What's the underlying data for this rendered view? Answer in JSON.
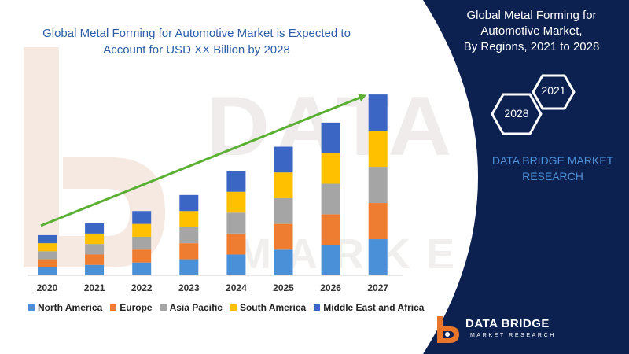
{
  "title": {
    "line1": "Global Metal Forming for Automotive Market is Expected to",
    "line2": "Account for USD XX Billion by 2028"
  },
  "panel": {
    "title_line1": "Global Metal Forming for",
    "title_line2": "Automotive Market,",
    "title_line3": "By Regions, 2021 to 2028",
    "hex_top": "2021",
    "hex_bottom": "2028",
    "brand_line1": "DATA BRIDGE MARKET",
    "brand_line2": "RESEARCH",
    "background_color": "#0d2150"
  },
  "watermark": {
    "big": "DATA BRIDGE",
    "small": "MARKET RESEARCH"
  },
  "logo": {
    "name": "DATA BRIDGE",
    "sub": "MARKET RESEARCH",
    "accent_color": "#e8752a"
  },
  "chart_data": {
    "type": "bar",
    "stacked": true,
    "title": "Global Metal Forming for Automotive Market is Expected to Account for USD XX Billion by 2028",
    "categories": [
      "2020",
      "2021",
      "2022",
      "2023",
      "2024",
      "2025",
      "2026",
      "2027"
    ],
    "series": [
      {
        "name": "North America",
        "color": "#4a90d9",
        "values": [
          10,
          13,
          16,
          20,
          26,
          32,
          38,
          45
        ]
      },
      {
        "name": "Europe",
        "color": "#ef7d31",
        "values": [
          10,
          13,
          16,
          20,
          26,
          32,
          38,
          45
        ]
      },
      {
        "name": "Asia Pacific",
        "color": "#a5a5a5",
        "values": [
          10,
          13,
          16,
          20,
          26,
          32,
          38,
          45
        ]
      },
      {
        "name": "South America",
        "color": "#ffc000",
        "values": [
          10,
          13,
          16,
          20,
          26,
          32,
          38,
          45
        ]
      },
      {
        "name": "Middle East and Africa",
        "color": "#3b66c4",
        "values": [
          10,
          13,
          16,
          20,
          26,
          32,
          38,
          45
        ]
      }
    ],
    "trend_arrow": {
      "color": "#5ab033",
      "from_category": "2020",
      "to_category": "2027"
    },
    "ylim": [
      0,
      230
    ],
    "grid": false,
    "legend_position": "bottom"
  }
}
